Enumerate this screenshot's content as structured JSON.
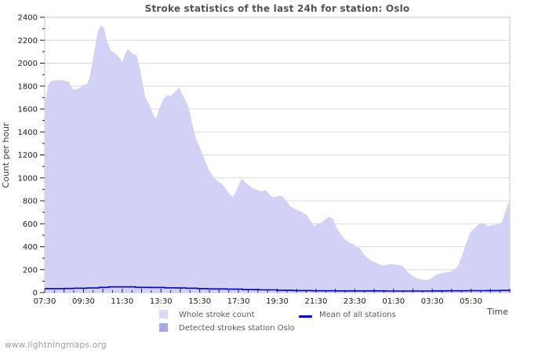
{
  "page": {
    "footer": "www.lightningmaps.org"
  },
  "chart_data": {
    "type": "area",
    "title": "Stroke statistics of the last 24h for station: Oslo",
    "ylabel": "Count per hour",
    "xlabel": "Time",
    "x_unit_hours_after": "07:30",
    "xlim": [
      0,
      24
    ],
    "ylim": [
      0,
      2400
    ],
    "y_tick_step": 200,
    "y_minor_step": 100,
    "grid": true,
    "x_tick_hours": [
      0,
      2,
      4,
      6,
      8,
      10,
      12,
      14,
      16,
      18,
      20,
      22
    ],
    "x_tick_labels": [
      "07:30",
      "09:30",
      "11:30",
      "13:30",
      "15:30",
      "17:30",
      "19:30",
      "21:30",
      "23:30",
      "01:30",
      "03:30",
      "05:30"
    ],
    "colors": {
      "plot_border": "#c9c9c9",
      "gridline": "#d9d9d9",
      "tick": "#222222",
      "area_fill": "#d2d2f7",
      "mean_line": "#0000cc"
    },
    "legend": [
      {
        "label": "Whole stroke count",
        "type": "area",
        "color": "#d9d9f8"
      },
      {
        "label": "Detected strokes station Oslo",
        "type": "area",
        "color": "#a9a9ea"
      },
      {
        "label": "Mean of all stations",
        "type": "line",
        "color": "#0000cc"
      }
    ],
    "series": [
      {
        "name": "Whole stroke count",
        "type": "area",
        "color": "#d2d2f7",
        "points": [
          [
            0,
            1660
          ],
          [
            0.1,
            1730
          ],
          [
            0.18,
            1810
          ],
          [
            0.3,
            1840
          ],
          [
            0.5,
            1850
          ],
          [
            0.8,
            1852
          ],
          [
            1.1,
            1845
          ],
          [
            1.25,
            1838
          ],
          [
            1.35,
            1800
          ],
          [
            1.5,
            1768
          ],
          [
            1.7,
            1775
          ],
          [
            1.85,
            1790
          ],
          [
            2.0,
            1812
          ],
          [
            2.15,
            1815
          ],
          [
            2.3,
            1860
          ],
          [
            2.45,
            1990
          ],
          [
            2.6,
            2140
          ],
          [
            2.75,
            2280
          ],
          [
            2.9,
            2330
          ],
          [
            3.05,
            2310
          ],
          [
            3.2,
            2200
          ],
          [
            3.4,
            2110
          ],
          [
            3.6,
            2090
          ],
          [
            3.8,
            2060
          ],
          [
            4.0,
            2010
          ],
          [
            4.15,
            2080
          ],
          [
            4.3,
            2125
          ],
          [
            4.5,
            2085
          ],
          [
            4.75,
            2068
          ],
          [
            4.9,
            1960
          ],
          [
            5.0,
            1870
          ],
          [
            5.2,
            1700
          ],
          [
            5.4,
            1640
          ],
          [
            5.6,
            1555
          ],
          [
            5.75,
            1515
          ],
          [
            5.9,
            1600
          ],
          [
            6.1,
            1680
          ],
          [
            6.3,
            1720
          ],
          [
            6.5,
            1715
          ],
          [
            6.7,
            1745
          ],
          [
            6.95,
            1790
          ],
          [
            7.15,
            1710
          ],
          [
            7.4,
            1630
          ],
          [
            7.6,
            1480
          ],
          [
            7.8,
            1345
          ],
          [
            8.0,
            1270
          ],
          [
            8.2,
            1180
          ],
          [
            8.5,
            1060
          ],
          [
            8.7,
            1010
          ],
          [
            8.9,
            975
          ],
          [
            9.15,
            945
          ],
          [
            9.35,
            905
          ],
          [
            9.55,
            855
          ],
          [
            9.72,
            835
          ],
          [
            9.92,
            900
          ],
          [
            10.1,
            975
          ],
          [
            10.2,
            990
          ],
          [
            10.36,
            960
          ],
          [
            10.57,
            930
          ],
          [
            10.77,
            910
          ],
          [
            10.97,
            895
          ],
          [
            11.17,
            885
          ],
          [
            11.38,
            890
          ],
          [
            11.5,
            880
          ],
          [
            11.62,
            848
          ],
          [
            11.82,
            830
          ],
          [
            12.0,
            840
          ],
          [
            12.15,
            846
          ],
          [
            12.3,
            835
          ],
          [
            12.5,
            790
          ],
          [
            12.7,
            748
          ],
          [
            12.9,
            730
          ],
          [
            13.1,
            715
          ],
          [
            13.3,
            700
          ],
          [
            13.5,
            680
          ],
          [
            13.72,
            625
          ],
          [
            13.9,
            580
          ],
          [
            14.1,
            600
          ],
          [
            14.3,
            615
          ],
          [
            14.5,
            640
          ],
          [
            14.66,
            662
          ],
          [
            14.86,
            645
          ],
          [
            15.06,
            570
          ],
          [
            15.26,
            510
          ],
          [
            15.47,
            470
          ],
          [
            15.67,
            440
          ],
          [
            15.87,
            425
          ],
          [
            16.07,
            405
          ],
          [
            16.28,
            385
          ],
          [
            16.48,
            330
          ],
          [
            16.68,
            300
          ],
          [
            16.88,
            275
          ],
          [
            17.1,
            260
          ],
          [
            17.3,
            245
          ],
          [
            17.5,
            238
          ],
          [
            17.7,
            245
          ],
          [
            17.9,
            250
          ],
          [
            18.1,
            245
          ],
          [
            18.3,
            240
          ],
          [
            18.5,
            228
          ],
          [
            18.7,
            185
          ],
          [
            18.9,
            155
          ],
          [
            19.1,
            135
          ],
          [
            19.3,
            120
          ],
          [
            19.5,
            112
          ],
          [
            19.7,
            110
          ],
          [
            19.9,
            118
          ],
          [
            20.1,
            145
          ],
          [
            20.3,
            160
          ],
          [
            20.5,
            170
          ],
          [
            20.75,
            178
          ],
          [
            20.95,
            185
          ],
          [
            21.15,
            200
          ],
          [
            21.35,
            240
          ],
          [
            21.55,
            330
          ],
          [
            21.75,
            430
          ],
          [
            21.95,
            520
          ],
          [
            22.15,
            555
          ],
          [
            22.35,
            590
          ],
          [
            22.55,
            608
          ],
          [
            22.7,
            600
          ],
          [
            22.87,
            578
          ],
          [
            23.1,
            590
          ],
          [
            23.3,
            592
          ],
          [
            23.45,
            600
          ],
          [
            23.6,
            618
          ],
          [
            23.77,
            700
          ],
          [
            23.93,
            780
          ],
          [
            24,
            790
          ]
        ]
      },
      {
        "name": "Mean of all stations",
        "type": "line",
        "render": "step",
        "color": "#0000cc",
        "points": [
          [
            0,
            35
          ],
          [
            1,
            36
          ],
          [
            1.5,
            38
          ],
          [
            2.2,
            40
          ],
          [
            2.8,
            46
          ],
          [
            3.3,
            50
          ],
          [
            4.3,
            50
          ],
          [
            4.7,
            46
          ],
          [
            5.4,
            45
          ],
          [
            6.2,
            42
          ],
          [
            6.8,
            40
          ],
          [
            7.3,
            38
          ],
          [
            7.9,
            35
          ],
          [
            8.4,
            32
          ],
          [
            9.4,
            30
          ],
          [
            10.2,
            26
          ],
          [
            11.1,
            24
          ],
          [
            12,
            20
          ],
          [
            12.8,
            18
          ],
          [
            13.8,
            16
          ],
          [
            15,
            15
          ],
          [
            16.5,
            15
          ],
          [
            17.6,
            14
          ],
          [
            19,
            14
          ],
          [
            20,
            15
          ],
          [
            20.8,
            16
          ],
          [
            21.8,
            17
          ],
          [
            22.8,
            18
          ],
          [
            23.5,
            19
          ],
          [
            24,
            20
          ]
        ]
      }
    ]
  }
}
